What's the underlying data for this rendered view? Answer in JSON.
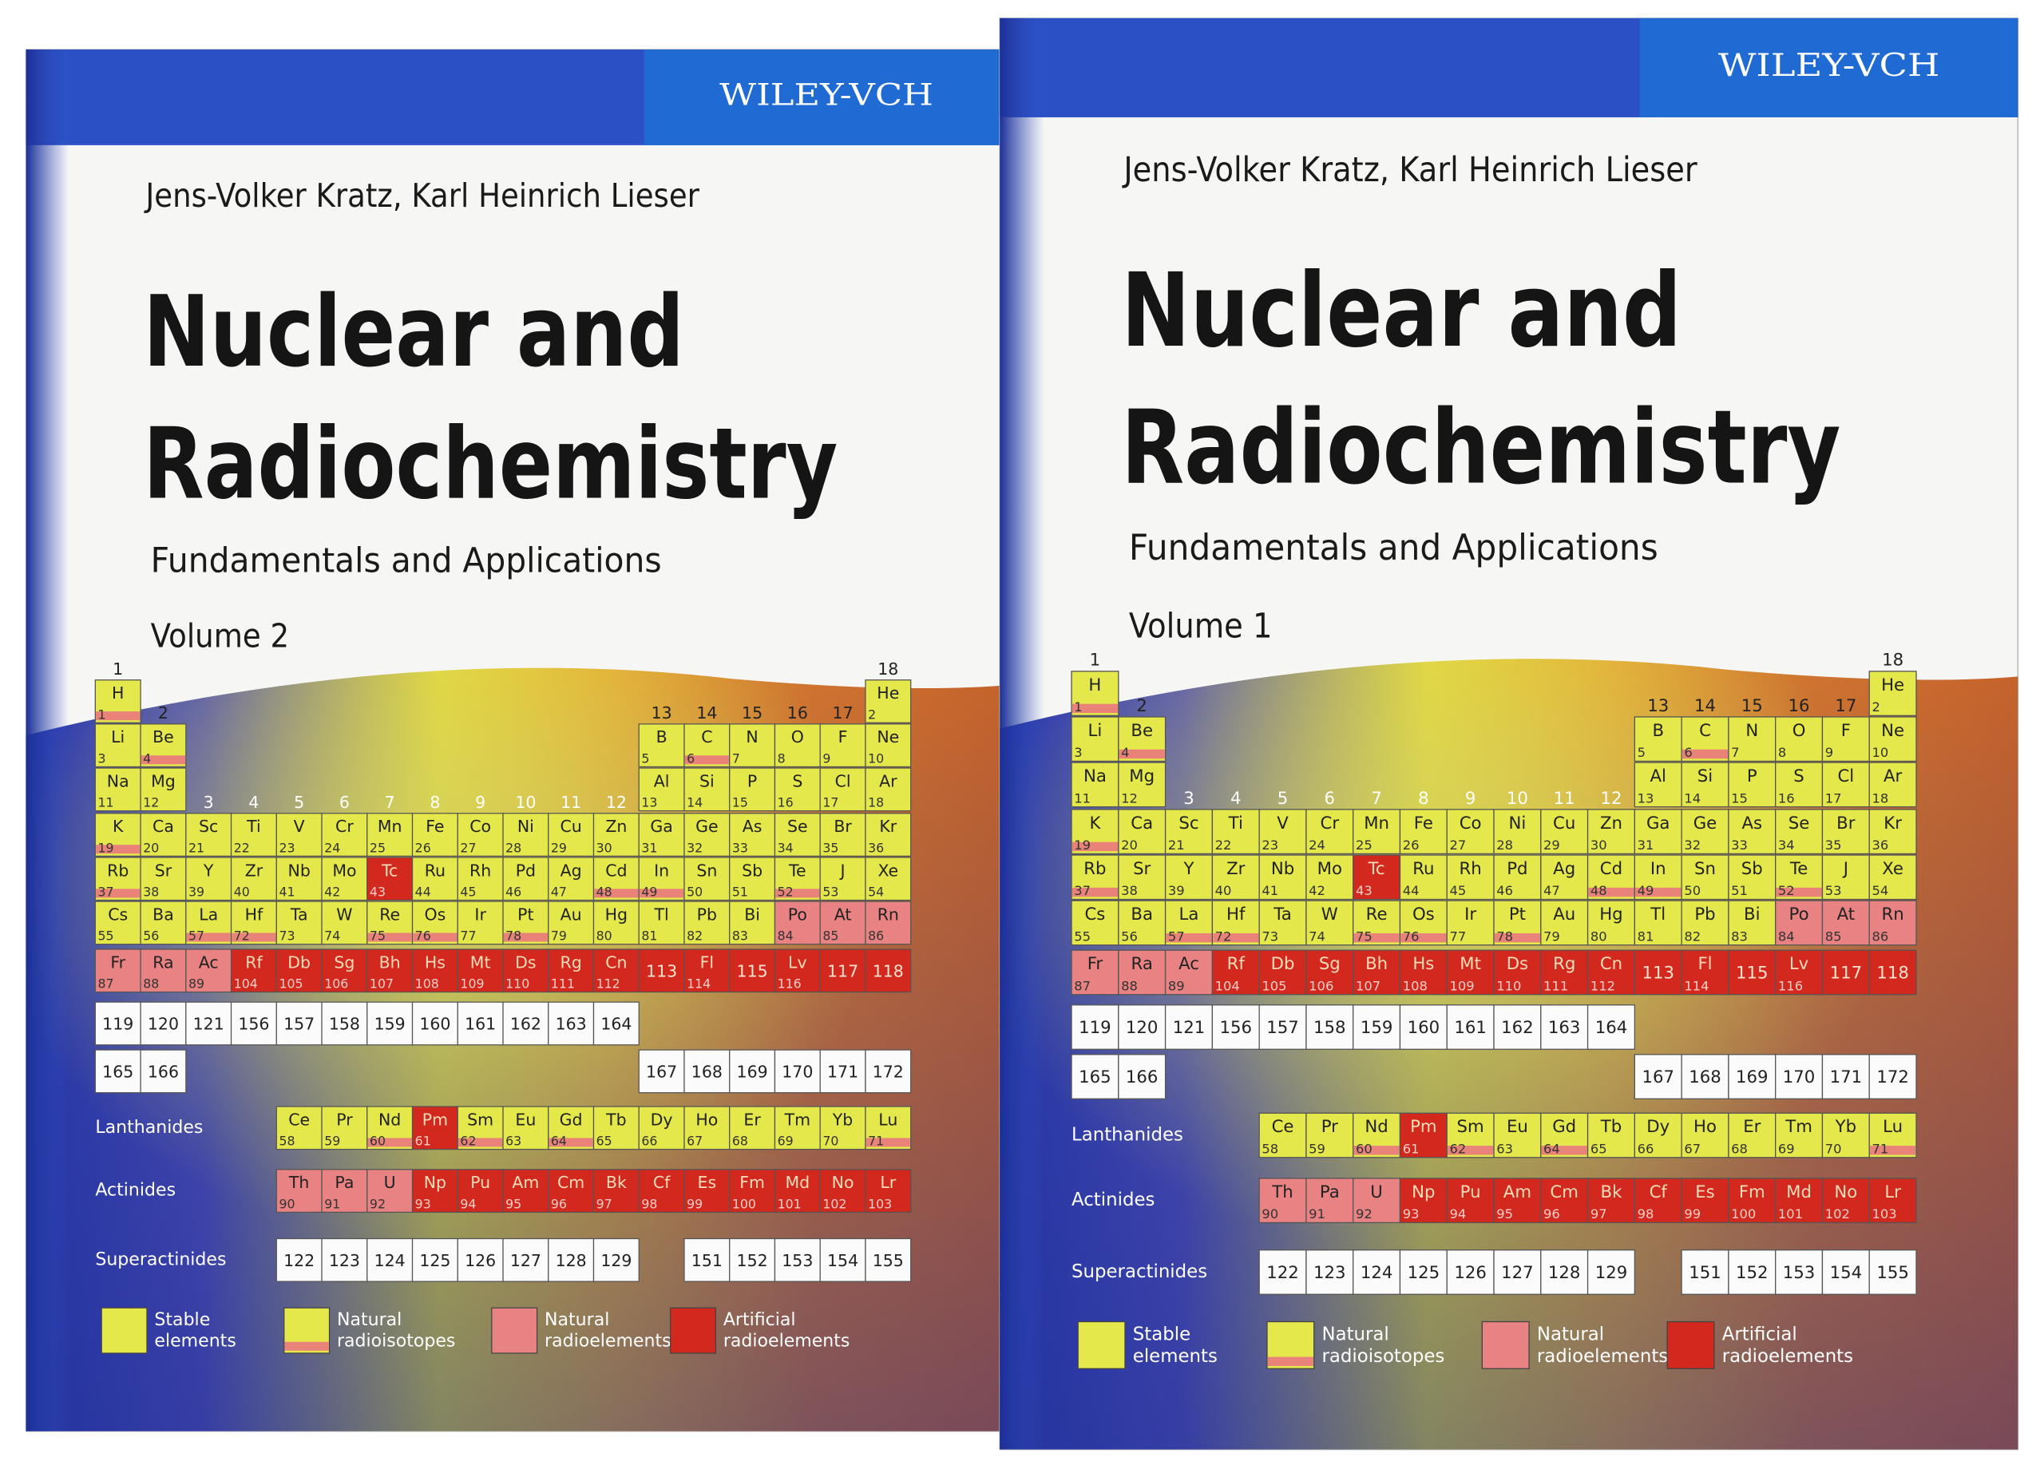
{
  "covers": [
    {
      "volume": "Volume 2"
    },
    {
      "volume": "Volume 1"
    }
  ],
  "publisher": "WILEY-VCH",
  "authors": "Jens-Volker Kratz, Karl Heinrich Lieser",
  "title": [
    "Nuclear and",
    "Radiochemistry"
  ],
  "subtitle": "Fundamentals and Applications",
  "periodic_table": {
    "groups": [
      1,
      2,
      3,
      4,
      5,
      6,
      7,
      8,
      9,
      10,
      11,
      12,
      13,
      14,
      15,
      16,
      17,
      18
    ],
    "rows": [
      [
        {
          "s": "H",
          "n": 1,
          "k": 1
        },
        null,
        null,
        null,
        null,
        null,
        null,
        null,
        null,
        null,
        null,
        null,
        null,
        null,
        null,
        null,
        null,
        {
          "s": "He",
          "n": 2,
          "k": 0
        }
      ],
      [
        {
          "s": "Li",
          "n": 3,
          "k": 0
        },
        {
          "s": "Be",
          "n": 4,
          "k": 1
        },
        null,
        null,
        null,
        null,
        null,
        null,
        null,
        null,
        null,
        null,
        {
          "s": "B",
          "n": 5,
          "k": 0
        },
        {
          "s": "C",
          "n": 6,
          "k": 1
        },
        {
          "s": "N",
          "n": 7,
          "k": 0
        },
        {
          "s": "O",
          "n": 8,
          "k": 0
        },
        {
          "s": "F",
          "n": 9,
          "k": 0
        },
        {
          "s": "Ne",
          "n": 10,
          "k": 0
        }
      ],
      [
        {
          "s": "Na",
          "n": 11,
          "k": 0
        },
        {
          "s": "Mg",
          "n": 12,
          "k": 0
        },
        null,
        null,
        null,
        null,
        null,
        null,
        null,
        null,
        null,
        null,
        {
          "s": "Al",
          "n": 13,
          "k": 0
        },
        {
          "s": "Si",
          "n": 14,
          "k": 0
        },
        {
          "s": "P",
          "n": 15,
          "k": 0
        },
        {
          "s": "S",
          "n": 16,
          "k": 0
        },
        {
          "s": "Cl",
          "n": 17,
          "k": 0
        },
        {
          "s": "Ar",
          "n": 18,
          "k": 0
        }
      ],
      [
        {
          "s": "K",
          "n": 19,
          "k": 1
        },
        {
          "s": "Ca",
          "n": 20,
          "k": 0
        },
        {
          "s": "Sc",
          "n": 21,
          "k": 0
        },
        {
          "s": "Ti",
          "n": 22,
          "k": 0
        },
        {
          "s": "V",
          "n": 23,
          "k": 0
        },
        {
          "s": "Cr",
          "n": 24,
          "k": 0
        },
        {
          "s": "Mn",
          "n": 25,
          "k": 0
        },
        {
          "s": "Fe",
          "n": 26,
          "k": 0
        },
        {
          "s": "Co",
          "n": 27,
          "k": 0
        },
        {
          "s": "Ni",
          "n": 28,
          "k": 0
        },
        {
          "s": "Cu",
          "n": 29,
          "k": 0
        },
        {
          "s": "Zn",
          "n": 30,
          "k": 0
        },
        {
          "s": "Ga",
          "n": 31,
          "k": 0
        },
        {
          "s": "Ge",
          "n": 32,
          "k": 0
        },
        {
          "s": "As",
          "n": 33,
          "k": 0
        },
        {
          "s": "Se",
          "n": 34,
          "k": 0
        },
        {
          "s": "Br",
          "n": 35,
          "k": 0
        },
        {
          "s": "Kr",
          "n": 36,
          "k": 0
        }
      ],
      [
        {
          "s": "Rb",
          "n": 37,
          "k": 1
        },
        {
          "s": "Sr",
          "n": 38,
          "k": 0
        },
        {
          "s": "Y",
          "n": 39,
          "k": 0
        },
        {
          "s": "Zr",
          "n": 40,
          "k": 0
        },
        {
          "s": "Nb",
          "n": 41,
          "k": 0
        },
        {
          "s": "Mo",
          "n": 42,
          "k": 0
        },
        {
          "s": "Tc",
          "n": 43,
          "k": 3
        },
        {
          "s": "Ru",
          "n": 44,
          "k": 0
        },
        {
          "s": "Rh",
          "n": 45,
          "k": 0
        },
        {
          "s": "Pd",
          "n": 46,
          "k": 0
        },
        {
          "s": "Ag",
          "n": 47,
          "k": 0
        },
        {
          "s": "Cd",
          "n": 48,
          "k": 1
        },
        {
          "s": "In",
          "n": 49,
          "k": 1
        },
        {
          "s": "Sn",
          "n": 50,
          "k": 0
        },
        {
          "s": "Sb",
          "n": 51,
          "k": 0
        },
        {
          "s": "Te",
          "n": 52,
          "k": 1
        },
        {
          "s": "J",
          "n": 53,
          "k": 0
        },
        {
          "s": "Xe",
          "n": 54,
          "k": 0
        }
      ],
      [
        {
          "s": "Cs",
          "n": 55,
          "k": 0
        },
        {
          "s": "Ba",
          "n": 56,
          "k": 0
        },
        {
          "s": "La",
          "n": 57,
          "k": 1
        },
        {
          "s": "Hf",
          "n": 72,
          "k": 1
        },
        {
          "s": "Ta",
          "n": 73,
          "k": 0
        },
        {
          "s": "W",
          "n": 74,
          "k": 0
        },
        {
          "s": "Re",
          "n": 75,
          "k": 1
        },
        {
          "s": "Os",
          "n": 76,
          "k": 1
        },
        {
          "s": "Ir",
          "n": 77,
          "k": 0
        },
        {
          "s": "Pt",
          "n": 78,
          "k": 1
        },
        {
          "s": "Au",
          "n": 79,
          "k": 0
        },
        {
          "s": "Hg",
          "n": 80,
          "k": 0
        },
        {
          "s": "Tl",
          "n": 81,
          "k": 0
        },
        {
          "s": "Pb",
          "n": 82,
          "k": 0
        },
        {
          "s": "Bi",
          "n": 83,
          "k": 0
        },
        {
          "s": "Po",
          "n": 84,
          "k": 2
        },
        {
          "s": "At",
          "n": 85,
          "k": 2
        },
        {
          "s": "Rn",
          "n": 86,
          "k": 2
        }
      ],
      [
        {
          "s": "Fr",
          "n": 87,
          "k": 2
        },
        {
          "s": "Ra",
          "n": 88,
          "k": 2
        },
        {
          "s": "Ac",
          "n": 89,
          "k": 2
        },
        {
          "s": "Rf",
          "n": 104,
          "k": 3
        },
        {
          "s": "Db",
          "n": 105,
          "k": 3
        },
        {
          "s": "Sg",
          "n": 106,
          "k": 3
        },
        {
          "s": "Bh",
          "n": 107,
          "k": 3
        },
        {
          "s": "Hs",
          "n": 108,
          "k": 3
        },
        {
          "s": "Mt",
          "n": 109,
          "k": 3
        },
        {
          "s": "Ds",
          "n": 110,
          "k": 3
        },
        {
          "s": "Rg",
          "n": 111,
          "k": 3
        },
        {
          "s": "Cn",
          "n": 112,
          "k": 3
        },
        {
          "n": 113,
          "k": 3
        },
        {
          "s": "Fl",
          "n": 114,
          "k": 3
        },
        {
          "n": 115,
          "k": 3
        },
        {
          "s": "Lv",
          "n": 116,
          "k": 3
        },
        {
          "n": 117,
          "k": 3
        },
        {
          "n": 118,
          "k": 3
        }
      ],
      [
        {
          "n": 119
        },
        {
          "n": 120
        },
        {
          "n": 121
        },
        {
          "n": 156
        },
        {
          "n": 157
        },
        {
          "n": 158
        },
        {
          "n": 159
        },
        {
          "n": 160
        },
        {
          "n": 161
        },
        {
          "n": 162
        },
        {
          "n": 163
        },
        {
          "n": 164
        }
      ],
      [
        {
          "n": 165
        },
        {
          "n": 166
        },
        null,
        null,
        null,
        null,
        null,
        null,
        null,
        null,
        null,
        null,
        {
          "n": 167
        },
        {
          "n": 168
        },
        {
          "n": 169
        },
        {
          "n": 170
        },
        {
          "n": 171
        },
        {
          "n": 172
        }
      ]
    ],
    "series": [
      {
        "label": "Lanthanides",
        "cells": [
          null,
          null,
          null,
          null,
          {
            "s": "Ce",
            "n": 58,
            "k": 0
          },
          {
            "s": "Pr",
            "n": 59,
            "k": 0
          },
          {
            "s": "Nd",
            "n": 60,
            "k": 1
          },
          {
            "s": "Pm",
            "n": 61,
            "k": 3
          },
          {
            "s": "Sm",
            "n": 62,
            "k": 1
          },
          {
            "s": "Eu",
            "n": 63,
            "k": 0
          },
          {
            "s": "Gd",
            "n": 64,
            "k": 1
          },
          {
            "s": "Tb",
            "n": 65,
            "k": 0
          },
          {
            "s": "Dy",
            "n": 66,
            "k": 0
          },
          {
            "s": "Ho",
            "n": 67,
            "k": 0
          },
          {
            "s": "Er",
            "n": 68,
            "k": 0
          },
          {
            "s": "Tm",
            "n": 69,
            "k": 0
          },
          {
            "s": "Yb",
            "n": 70,
            "k": 0
          },
          {
            "s": "Lu",
            "n": 71,
            "k": 1
          }
        ]
      },
      {
        "label": "Actinides",
        "cells": [
          null,
          null,
          null,
          null,
          {
            "s": "Th",
            "n": 90,
            "k": 2
          },
          {
            "s": "Pa",
            "n": 91,
            "k": 2
          },
          {
            "s": "U",
            "n": 92,
            "k": 2
          },
          {
            "s": "Np",
            "n": 93,
            "k": 3
          },
          {
            "s": "Pu",
            "n": 94,
            "k": 3
          },
          {
            "s": "Am",
            "n": 95,
            "k": 3
          },
          {
            "s": "Cm",
            "n": 96,
            "k": 3
          },
          {
            "s": "Bk",
            "n": 97,
            "k": 3
          },
          {
            "s": "Cf",
            "n": 98,
            "k": 3
          },
          {
            "s": "Es",
            "n": 99,
            "k": 3
          },
          {
            "s": "Fm",
            "n": 100,
            "k": 3
          },
          {
            "s": "Md",
            "n": 101,
            "k": 3
          },
          {
            "s": "No",
            "n": 102,
            "k": 3
          },
          {
            "s": "Lr",
            "n": 103,
            "k": 3
          }
        ]
      },
      {
        "label": "Superactinides",
        "cells": [
          null,
          null,
          null,
          null,
          {
            "n": 122
          },
          {
            "n": 123
          },
          {
            "n": 124
          },
          {
            "n": 125
          },
          {
            "n": 126
          },
          {
            "n": 127
          },
          {
            "n": 128
          },
          {
            "n": 129
          },
          null,
          {
            "n": 151
          },
          {
            "n": 152
          },
          {
            "n": 153
          },
          {
            "n": 154
          },
          {
            "n": 155
          }
        ]
      }
    ],
    "legend": [
      {
        "label": [
          "Stable",
          "elements"
        ],
        "color": "#e4e84a"
      },
      {
        "label": [
          "Natural",
          "radioisotopes"
        ],
        "color": "#e4e84a",
        "band": "#e9837a"
      },
      {
        "label": [
          "Natural",
          "radioelements"
        ],
        "color": "#e98282"
      },
      {
        "label": [
          "Artificial",
          "radioelements"
        ],
        "color": "#d2281e"
      }
    ]
  }
}
